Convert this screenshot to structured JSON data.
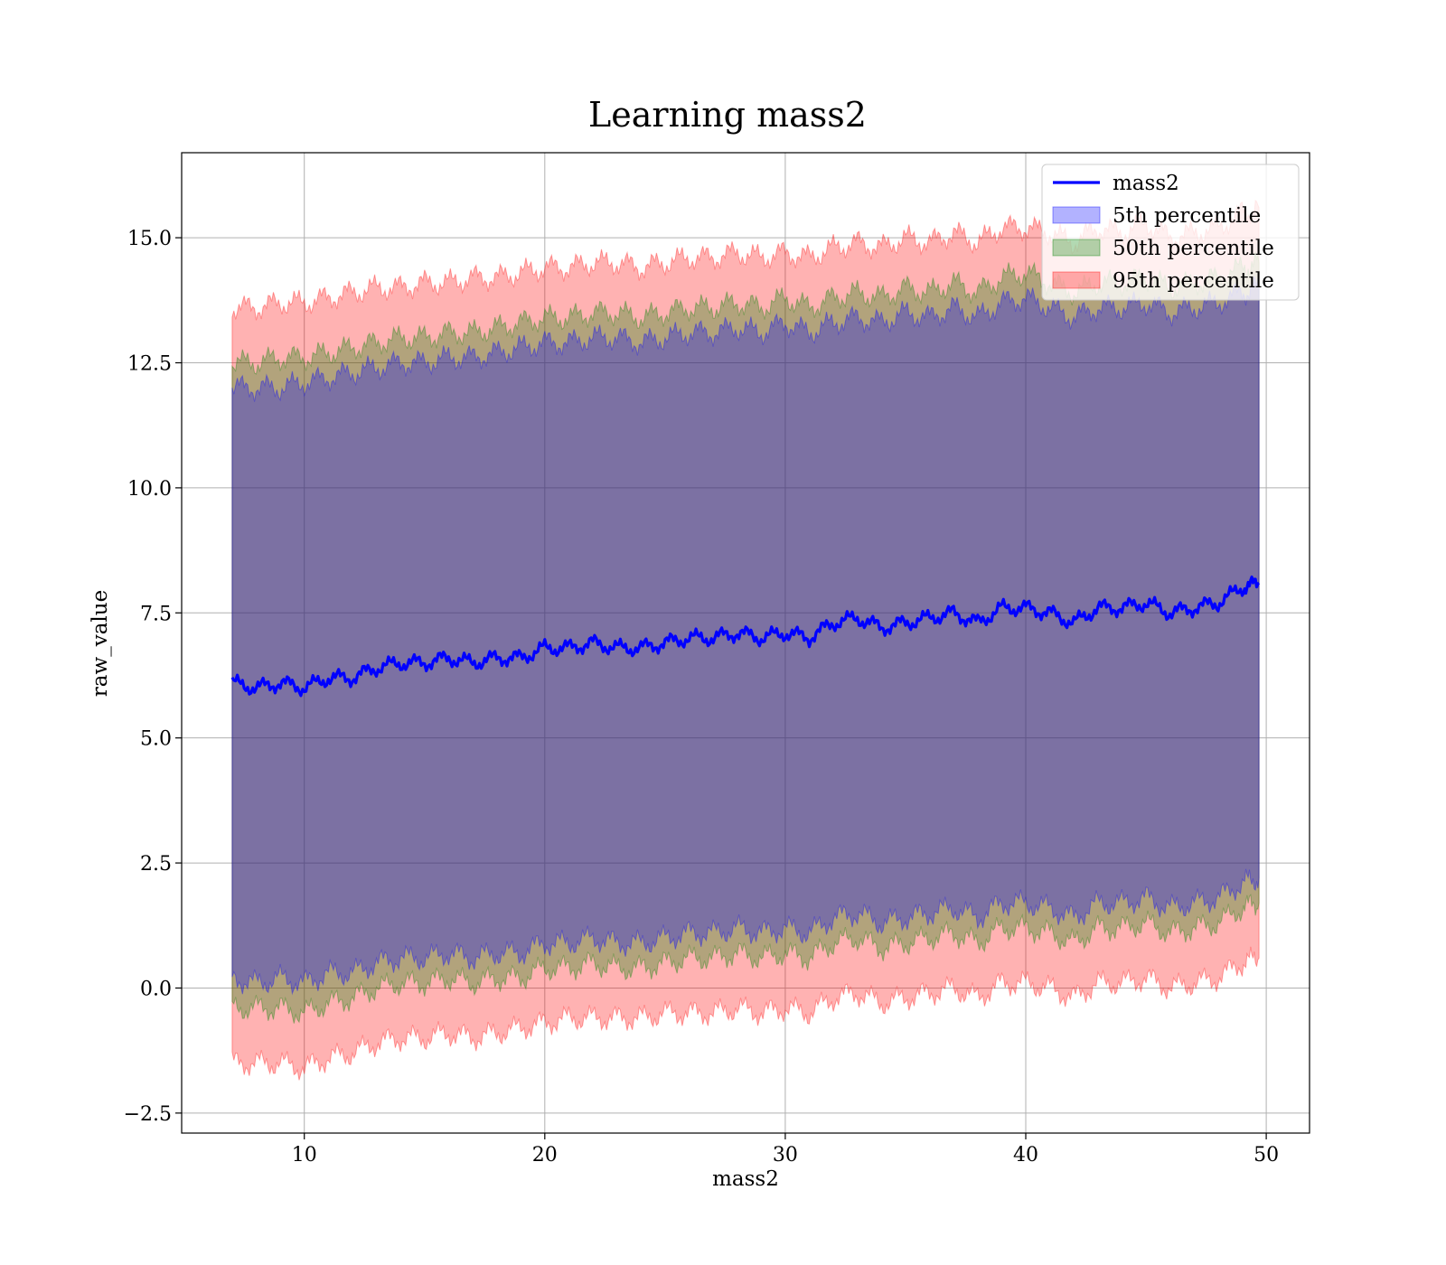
{
  "chart_data": {
    "type": "line",
    "title": "Learning mass2",
    "xlabel": "mass2",
    "ylabel": "raw_value",
    "xlim": [
      4.9,
      51.8
    ],
    "ylim": [
      -2.9,
      16.7
    ],
    "x_ticks": [
      10,
      20,
      30,
      40,
      50
    ],
    "y_ticks": [
      -2.5,
      0.0,
      2.5,
      5.0,
      7.5,
      10.0,
      12.5,
      15.0
    ],
    "x_tick_labels": [
      "10",
      "20",
      "30",
      "40",
      "50"
    ],
    "y_tick_labels": [
      "−2.5",
      "0.0",
      "2.5",
      "5.0",
      "7.5",
      "10.0",
      "12.5",
      "15.0"
    ],
    "grid": true,
    "legend_position": "top-right",
    "x": [
      7.0,
      8.0,
      9.0,
      10.0,
      11.0,
      12.0,
      13.0,
      14.0,
      15.0,
      16.0,
      17.0,
      18.0,
      19.0,
      20.0,
      21.0,
      22.0,
      23.0,
      24.0,
      25.0,
      26.0,
      27.0,
      28.0,
      29.0,
      30.0,
      31.0,
      32.0,
      33.0,
      34.0,
      35.0,
      36.0,
      37.0,
      38.0,
      39.0,
      40.0,
      41.0,
      42.0,
      43.0,
      44.0,
      45.0,
      46.0,
      47.0,
      48.0,
      49.0,
      49.7
    ],
    "series": [
      {
        "name": "mass2",
        "kind": "line",
        "color": "#0000ff",
        "values": [
          6.1,
          6.0,
          6.1,
          6.0,
          6.2,
          6.2,
          6.4,
          6.5,
          6.5,
          6.6,
          6.5,
          6.6,
          6.6,
          6.8,
          6.8,
          6.9,
          6.8,
          6.8,
          6.9,
          7.0,
          7.0,
          7.1,
          7.0,
          7.1,
          7.0,
          7.3,
          7.4,
          7.2,
          7.3,
          7.4,
          7.5,
          7.3,
          7.6,
          7.6,
          7.5,
          7.3,
          7.6,
          7.6,
          7.7,
          7.5,
          7.6,
          7.7,
          8.0,
          8.1
        ]
      },
      {
        "name": "5th percentile",
        "kind": "band",
        "color": "#0000ff",
        "upper": [
          12.0,
          12.0,
          12.0,
          12.1,
          12.2,
          12.3,
          12.4,
          12.5,
          12.5,
          12.6,
          12.6,
          12.7,
          12.8,
          12.9,
          12.9,
          13.0,
          13.0,
          12.9,
          13.0,
          13.1,
          13.1,
          13.2,
          13.1,
          13.3,
          13.1,
          13.3,
          13.4,
          13.3,
          13.5,
          13.4,
          13.6,
          13.4,
          13.7,
          13.8,
          13.6,
          13.4,
          13.6,
          13.6,
          13.7,
          13.5,
          13.6,
          13.7,
          13.9,
          14.0
        ],
        "lower": [
          0.2,
          0.1,
          0.2,
          0.1,
          0.3,
          0.3,
          0.5,
          0.6,
          0.6,
          0.7,
          0.6,
          0.7,
          0.7,
          0.9,
          0.9,
          1.0,
          0.9,
          0.9,
          1.0,
          1.1,
          1.1,
          1.2,
          1.1,
          1.2,
          1.1,
          1.4,
          1.5,
          1.3,
          1.4,
          1.5,
          1.6,
          1.4,
          1.7,
          1.7,
          1.6,
          1.4,
          1.7,
          1.7,
          1.8,
          1.6,
          1.7,
          1.8,
          2.1,
          2.2
        ]
      },
      {
        "name": "50th percentile",
        "kind": "band",
        "color": "#008000",
        "upper": [
          12.5,
          12.5,
          12.6,
          12.6,
          12.7,
          12.8,
          12.9,
          13.0,
          13.0,
          13.1,
          13.1,
          13.2,
          13.3,
          13.4,
          13.4,
          13.5,
          13.5,
          13.4,
          13.5,
          13.6,
          13.6,
          13.7,
          13.6,
          13.8,
          13.6,
          13.8,
          13.9,
          13.8,
          14.0,
          13.9,
          14.1,
          13.9,
          14.2,
          14.3,
          14.1,
          13.9,
          14.1,
          14.1,
          14.2,
          14.0,
          14.1,
          14.2,
          14.4,
          14.5
        ],
        "lower": [
          -0.4,
          -0.4,
          -0.4,
          -0.5,
          -0.3,
          -0.2,
          0.0,
          0.1,
          0.1,
          0.2,
          0.1,
          0.2,
          0.2,
          0.4,
          0.4,
          0.5,
          0.4,
          0.4,
          0.5,
          0.6,
          0.6,
          0.7,
          0.6,
          0.7,
          0.6,
          0.9,
          1.0,
          0.8,
          0.9,
          1.0,
          1.1,
          0.9,
          1.2,
          1.2,
          1.1,
          0.9,
          1.2,
          1.2,
          1.3,
          1.1,
          1.2,
          1.3,
          1.6,
          1.7
        ]
      },
      {
        "name": "95th percentile",
        "kind": "band",
        "color": "#ff0000",
        "upper": [
          13.6,
          13.6,
          13.7,
          13.7,
          13.8,
          13.9,
          14.0,
          14.0,
          14.1,
          14.1,
          14.2,
          14.2,
          14.3,
          14.4,
          14.4,
          14.5,
          14.5,
          14.4,
          14.5,
          14.6,
          14.6,
          14.7,
          14.6,
          14.7,
          14.6,
          14.8,
          14.9,
          14.8,
          15.0,
          14.9,
          15.1,
          14.9,
          15.2,
          15.2,
          15.1,
          14.9,
          15.2,
          15.1,
          15.3,
          15.0,
          15.1,
          15.2,
          15.5,
          15.6
        ],
        "lower": [
          -1.5,
          -1.5,
          -1.5,
          -1.6,
          -1.4,
          -1.3,
          -1.1,
          -1.0,
          -1.0,
          -0.9,
          -1.0,
          -0.9,
          -0.8,
          -0.7,
          -0.6,
          -0.6,
          -0.6,
          -0.6,
          -0.5,
          -0.5,
          -0.5,
          -0.4,
          -0.5,
          -0.4,
          -0.5,
          -0.2,
          -0.1,
          -0.3,
          -0.2,
          -0.1,
          0.0,
          -0.2,
          0.1,
          0.1,
          0.0,
          -0.2,
          0.1,
          0.1,
          0.2,
          0.0,
          0.1,
          0.2,
          0.5,
          0.6
        ]
      }
    ]
  }
}
